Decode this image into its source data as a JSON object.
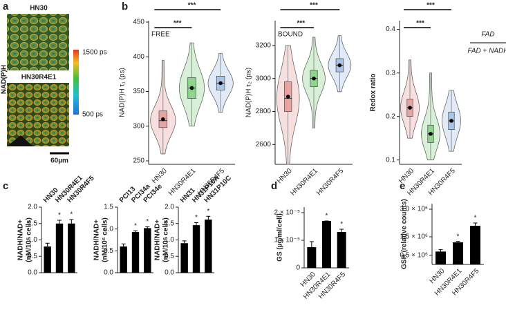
{
  "panel_labels": [
    "a",
    "b",
    "c",
    "d",
    "e"
  ],
  "image_panel": {
    "cell_lines": [
      "HN30",
      "HN30R4E1"
    ],
    "channel": "NAD(P)H",
    "colorbar_max": "1500 ps",
    "colorbar_min": "500 ps",
    "scale_bar": "60µm"
  },
  "chart_data": [
    {
      "type": "violin",
      "annotation": "FREE",
      "y_label": "NAD(P)H τ₁ (ps)",
      "categories": [
        "HN30",
        "HN30R4E1",
        "HN30R4F5"
      ],
      "colors": [
        "#e8a3a3",
        "#8fd48f",
        "#a9c6ea"
      ],
      "ylim": [
        245,
        452
      ],
      "yticks": [
        250,
        300,
        350,
        400,
        450
      ],
      "mins": [
        260,
        300,
        320
      ],
      "q1": [
        298,
        340,
        352
      ],
      "medians": [
        308,
        355,
        362
      ],
      "q3": [
        322,
        370,
        372
      ],
      "maxs": [
        395,
        420,
        405
      ],
      "means": [
        310,
        355,
        362
      ],
      "significance": [
        {
          "from": 0,
          "to": 2,
          "label": "***"
        },
        {
          "from": 0,
          "to": 1,
          "label": "***"
        }
      ]
    },
    {
      "type": "violin",
      "annotation": "BOUND",
      "y_label": "NAD(P)H τ₂ (ps)",
      "categories": [
        "HN30",
        "HN30R4E1",
        "HN30R4F5"
      ],
      "colors": [
        "#e8a3a3",
        "#8fd48f",
        "#a9c6ea"
      ],
      "ylim": [
        2480,
        3350
      ],
      "yticks": [
        2600,
        2800,
        3000,
        3200
      ],
      "mins": [
        2480,
        2700,
        2920
      ],
      "q1": [
        2800,
        2950,
        3040
      ],
      "medians": [
        2880,
        3000,
        3080
      ],
      "q3": [
        2980,
        3050,
        3120
      ],
      "maxs": [
        3200,
        3250,
        3260
      ],
      "means": [
        2890,
        3000,
        3080
      ],
      "significance": [
        {
          "from": 0,
          "to": 2,
          "label": "***"
        },
        {
          "from": 0,
          "to": 1,
          "label": "***"
        }
      ]
    },
    {
      "type": "violin",
      "y_label": "Redox ratio",
      "formula": {
        "numerator": "FAD",
        "denominator": "FAD + NADH"
      },
      "categories": [
        "HN30",
        "HN30R4E1",
        "HN30R4F5"
      ],
      "colors": [
        "#e8a3a3",
        "#8fd48f",
        "#a9c6ea"
      ],
      "ylim": [
        0.09,
        0.42
      ],
      "yticks": [
        0.1,
        0.2,
        0.3,
        0.4
      ],
      "mins": [
        0.15,
        0.1,
        0.12
      ],
      "q1": [
        0.2,
        0.14,
        0.17
      ],
      "medians": [
        0.22,
        0.16,
        0.19
      ],
      "q3": [
        0.24,
        0.18,
        0.21
      ],
      "maxs": [
        0.33,
        0.3,
        0.26
      ],
      "means": [
        0.22,
        0.16,
        0.19
      ],
      "significance": [
        {
          "from": 0,
          "to": 2,
          "label": "***"
        },
        {
          "from": 0,
          "to": 1,
          "label": "***"
        }
      ]
    },
    {
      "type": "bar",
      "y_label": [
        "NADH/NAD+",
        "(nM/10⁶ cells)"
      ],
      "categories": [
        "HN30",
        "HN30R4E1",
        "HN30R4F5"
      ],
      "values": [
        0.8,
        1.5,
        1.5
      ],
      "errors": [
        0.1,
        0.1,
        0.12
      ],
      "markers": [
        null,
        "*",
        "*"
      ],
      "color": "#000000",
      "ylim": [
        0,
        2
      ],
      "yticks": [
        {
          "value": 0,
          "label": "0.0"
        },
        {
          "value": 0.5,
          "label": "0.5"
        },
        {
          "value": 1,
          "label": "1.0"
        },
        {
          "value": 1.5,
          "label": "1.5"
        },
        {
          "value": 2,
          "label": "2.0"
        }
      ]
    },
    {
      "type": "bar",
      "y_label": [
        "NADH/NAD+",
        "(nM/10⁶ cells)"
      ],
      "categories": [
        "PCI13",
        "PCI34a",
        "PCI34e"
      ],
      "values": [
        0.6,
        0.93,
        1.02
      ],
      "errors": [
        0.06,
        0.03,
        0.03
      ],
      "markers": [
        null,
        "*",
        "*"
      ],
      "color": "#000000",
      "ylim": [
        0,
        1.5
      ],
      "yticks": [
        {
          "value": 0,
          "label": "0.0"
        },
        {
          "value": 0.5,
          "label": "0.5"
        },
        {
          "value": 1,
          "label": "1.0"
        },
        {
          "value": 1.5,
          "label": "1.5"
        }
      ]
    },
    {
      "type": "bar",
      "y_label": [
        "NADH/NAD+",
        "(nM/10⁶ cells)"
      ],
      "categories": [
        "HN31",
        "HN31P10A",
        "HN31P10C"
      ],
      "values": [
        0.9,
        1.45,
        1.62
      ],
      "errors": [
        0.07,
        0.08,
        0.1
      ],
      "markers": [
        null,
        "*",
        "*"
      ],
      "color": "#000000",
      "ylim": [
        0,
        2
      ],
      "yticks": [
        {
          "value": 0,
          "label": "0.0"
        },
        {
          "value": 0.5,
          "label": "0.5"
        },
        {
          "value": 1,
          "label": "1.0"
        },
        {
          "value": 1.5,
          "label": "1.5"
        },
        {
          "value": 2,
          "label": "2.0"
        }
      ]
    },
    {
      "type": "bar",
      "y_label": [
        "GS (µg/ml/cell)"
      ],
      "categories": [
        "HN30",
        "HN30R4E1",
        "HN30R4F5"
      ],
      "values": [
        7.5e-06,
        1.7e-05,
        1.3e-05
      ],
      "errors": [
        2e-06,
        0,
        1e-06
      ],
      "markers": [
        null,
        "*",
        "*"
      ],
      "color": "#000000",
      "ylim": [
        0,
        2.2e-05
      ],
      "yticks": [
        0,
        {
          "value": 1e-05,
          "label": "1 × 10⁻⁵"
        },
        {
          "value": 2e-05,
          "label": "2 × 10⁻⁵"
        }
      ]
    },
    {
      "type": "bar",
      "y_label": [
        "GSH (relative counts)"
      ],
      "categories": [
        "HN30",
        "HN30R4E1",
        "HN30R4F5"
      ],
      "values": [
        700000,
        1200000,
        2100000
      ],
      "errors": [
        100000,
        50000,
        150000
      ],
      "markers": [
        null,
        "*",
        "*"
      ],
      "color": "#000000",
      "ylim": [
        0,
        3300000
      ],
      "yticks": [
        {
          "value": 500000,
          "label": "0.5 × 10⁶"
        },
        {
          "value": 1500000,
          "label": "1.5 × 10⁶"
        },
        {
          "value": 3000000,
          "label": "3.0 × 10⁶"
        }
      ]
    }
  ]
}
